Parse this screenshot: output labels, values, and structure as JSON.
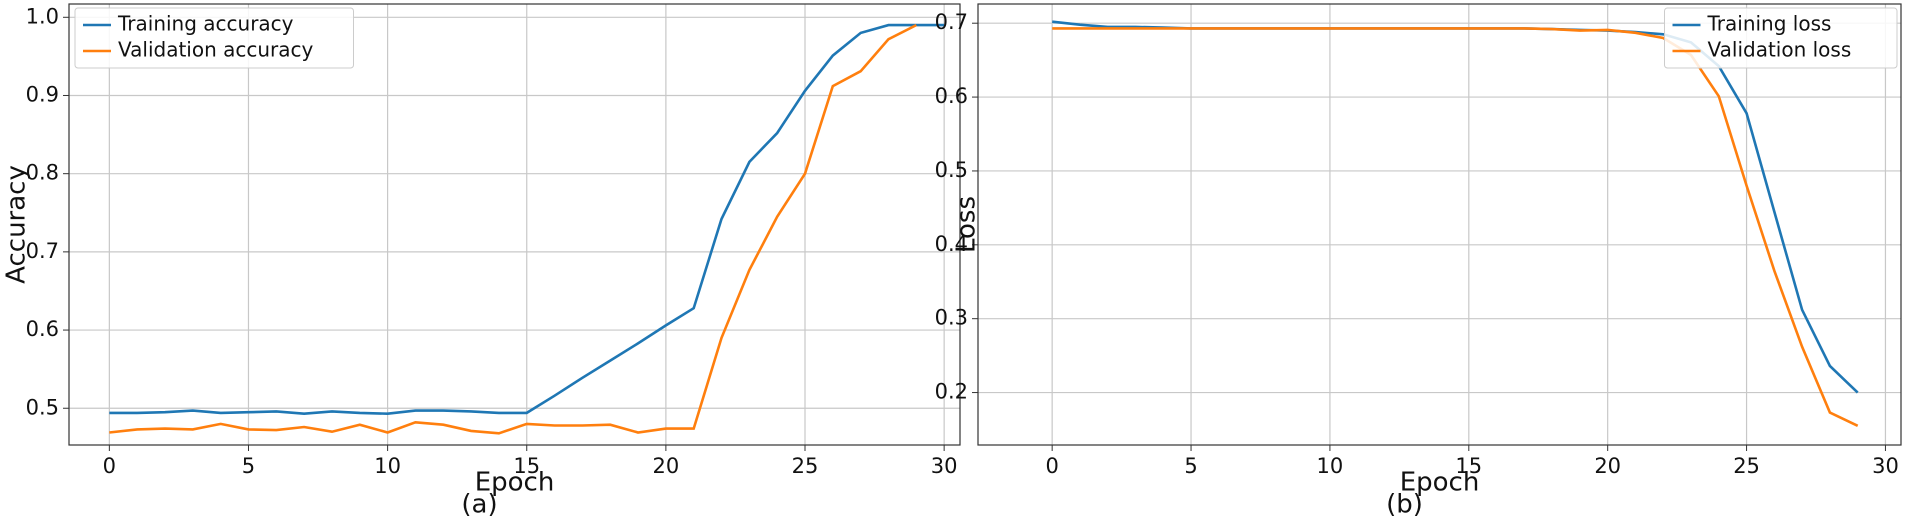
{
  "chart_data": [
    {
      "type": "line",
      "caption": "(a)",
      "x_label": "Epoch",
      "y_label": "Accuracy",
      "x": [
        0,
        1,
        2,
        3,
        4,
        5,
        6,
        7,
        8,
        9,
        10,
        11,
        12,
        13,
        14,
        15,
        16,
        17,
        18,
        19,
        20,
        21,
        22,
        23,
        24,
        25,
        26,
        27,
        28,
        29,
        30
      ],
      "series": [
        {
          "name": "Training accuracy",
          "color": "#1f77b4",
          "values": [
            0.494,
            0.494,
            0.495,
            0.497,
            0.494,
            0.495,
            0.496,
            0.493,
            0.496,
            0.494,
            0.493,
            0.497,
            0.497,
            0.496,
            0.494,
            0.494,
            0.516,
            0.539,
            0.561,
            0.583,
            0.606,
            0.628,
            0.742,
            0.815,
            0.852,
            0.906,
            0.951,
            0.98,
            0.99,
            0.99,
            0.99
          ]
        },
        {
          "name": "Validation accuracy",
          "color": "#ff7f0e",
          "values": [
            0.469,
            0.473,
            0.474,
            0.473,
            0.48,
            0.473,
            0.472,
            0.476,
            0.47,
            0.479,
            0.469,
            0.482,
            0.479,
            0.471,
            0.468,
            0.48,
            0.478,
            0.478,
            0.479,
            0.469,
            0.474,
            0.474,
            0.59,
            0.677,
            0.745,
            0.8,
            0.912,
            0.931,
            0.972,
            0.99,
            null
          ]
        }
      ],
      "xlim": [
        -1.45,
        30.57
      ],
      "ylim": [
        0.453,
        1.017
      ],
      "xticks": [
        0,
        5,
        10,
        15,
        20,
        25,
        30
      ],
      "yticks": [
        0.5,
        0.6,
        0.7,
        0.8,
        0.9,
        {
          "value": 1.0,
          "label": "1.0"
        }
      ],
      "grid": true,
      "legend": "upper-left"
    },
    {
      "type": "line",
      "caption": "(b)",
      "x_label": "Epoch",
      "y_label": "Loss",
      "x": [
        0,
        1,
        2,
        3,
        4,
        5,
        6,
        7,
        8,
        9,
        10,
        11,
        12,
        13,
        14,
        15,
        16,
        17,
        18,
        19,
        20,
        21,
        22,
        23,
        24,
        25,
        26,
        27,
        28,
        29
      ],
      "series": [
        {
          "name": "Training loss",
          "color": "#1f77b4",
          "values": [
            0.702,
            0.698,
            0.695,
            0.695,
            0.694,
            0.693,
            0.693,
            0.693,
            0.693,
            0.693,
            0.693,
            0.693,
            0.693,
            0.693,
            0.693,
            0.693,
            0.693,
            0.693,
            0.692,
            0.691,
            0.69,
            0.688,
            0.685,
            0.674,
            0.642,
            0.578,
            0.445,
            0.312,
            0.236,
            0.2
          ]
        },
        {
          "name": "Validation loss",
          "color": "#ff7f0e",
          "values": [
            0.693,
            0.693,
            0.693,
            0.693,
            0.693,
            0.693,
            0.693,
            0.693,
            0.693,
            0.693,
            0.693,
            0.693,
            0.693,
            0.693,
            0.693,
            0.693,
            0.693,
            0.693,
            0.692,
            0.69,
            0.691,
            0.687,
            0.68,
            0.657,
            0.601,
            0.48,
            0.365,
            0.262,
            0.173,
            0.155
          ]
        }
      ],
      "xlim": [
        -2.67,
        30.56
      ],
      "ylim": [
        0.129,
        0.726
      ],
      "xticks": [
        0,
        5,
        10,
        15,
        20,
        25,
        30
      ],
      "yticks": [
        0.2,
        0.3,
        0.4,
        0.5,
        0.6,
        0.7
      ],
      "grid": true,
      "legend": "upper-right"
    }
  ]
}
